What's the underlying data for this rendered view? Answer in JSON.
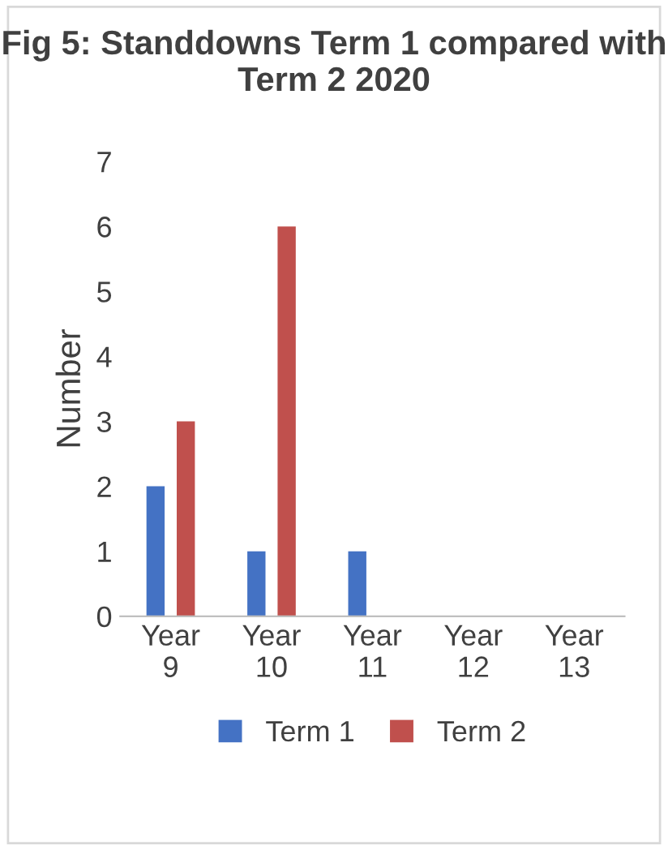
{
  "chart_data": {
    "type": "bar",
    "title": "Fig 5: Standdowns Term 1 compared with Term 2 2020",
    "ylabel": "Number",
    "categories": [
      "Year 9",
      "Year 10",
      "Year 11",
      "Year 12",
      "Year 13"
    ],
    "series": [
      {
        "name": "Term 1",
        "color": "#4472c4",
        "values": [
          2,
          1,
          1,
          0,
          0
        ]
      },
      {
        "name": "Term 2",
        "color": "#c0504d",
        "values": [
          3,
          6,
          0,
          0,
          0
        ]
      }
    ],
    "ylim": [
      0,
      7
    ],
    "yticks": [
      0,
      1,
      2,
      3,
      4,
      5,
      6,
      7
    ],
    "grid": false,
    "legend": "bottom"
  }
}
